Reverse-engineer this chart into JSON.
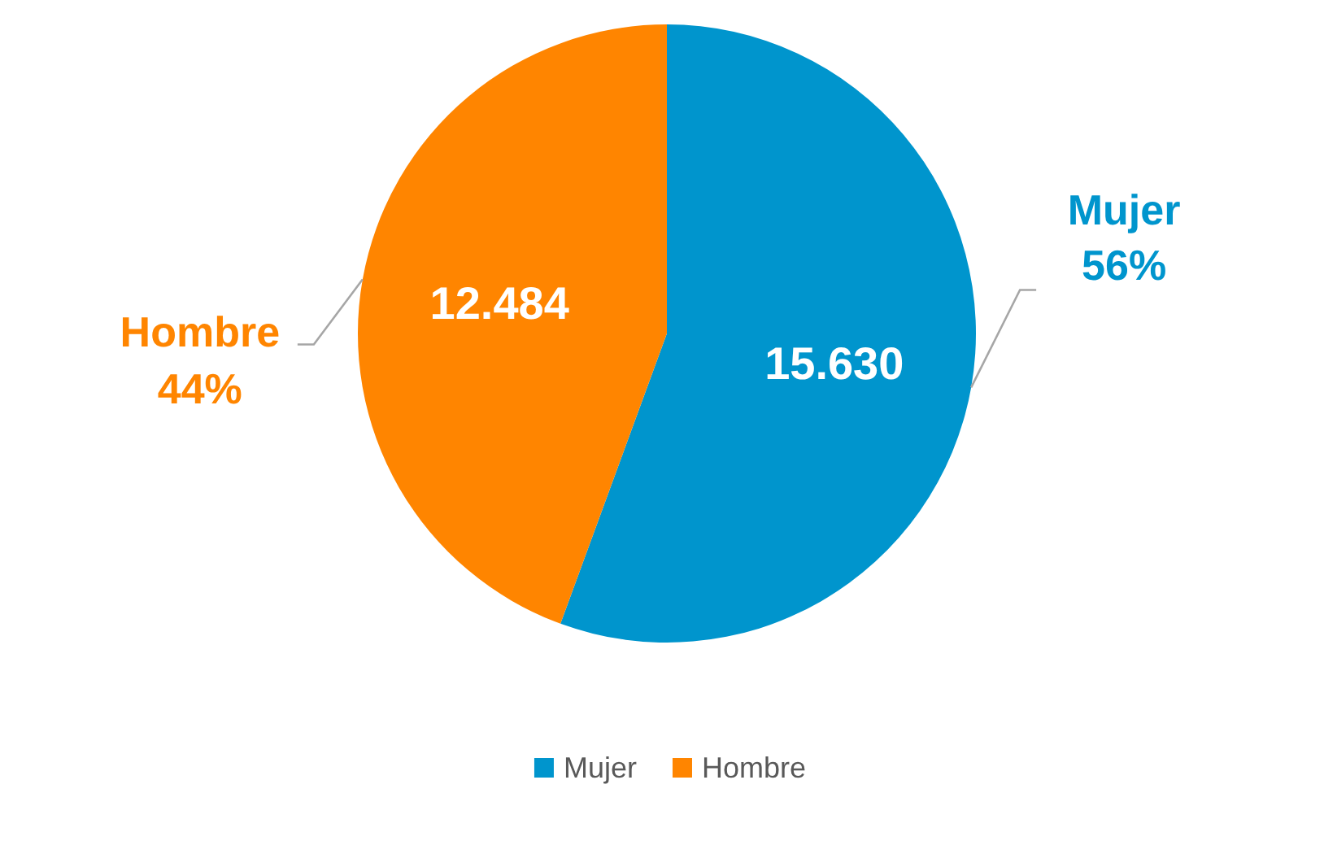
{
  "chart_data": {
    "type": "pie",
    "categories": [
      "Mujer",
      "Hombre"
    ],
    "values": [
      15630,
      12484
    ],
    "colors": [
      "#0095cd",
      "#ff8500"
    ],
    "value_labels": [
      "15.630",
      "12.484"
    ],
    "annotations": [
      {
        "text": "56%",
        "x": "Mujer"
      },
      {
        "text": "44%",
        "x": "Hombre"
      }
    ],
    "legend": "bottom"
  }
}
